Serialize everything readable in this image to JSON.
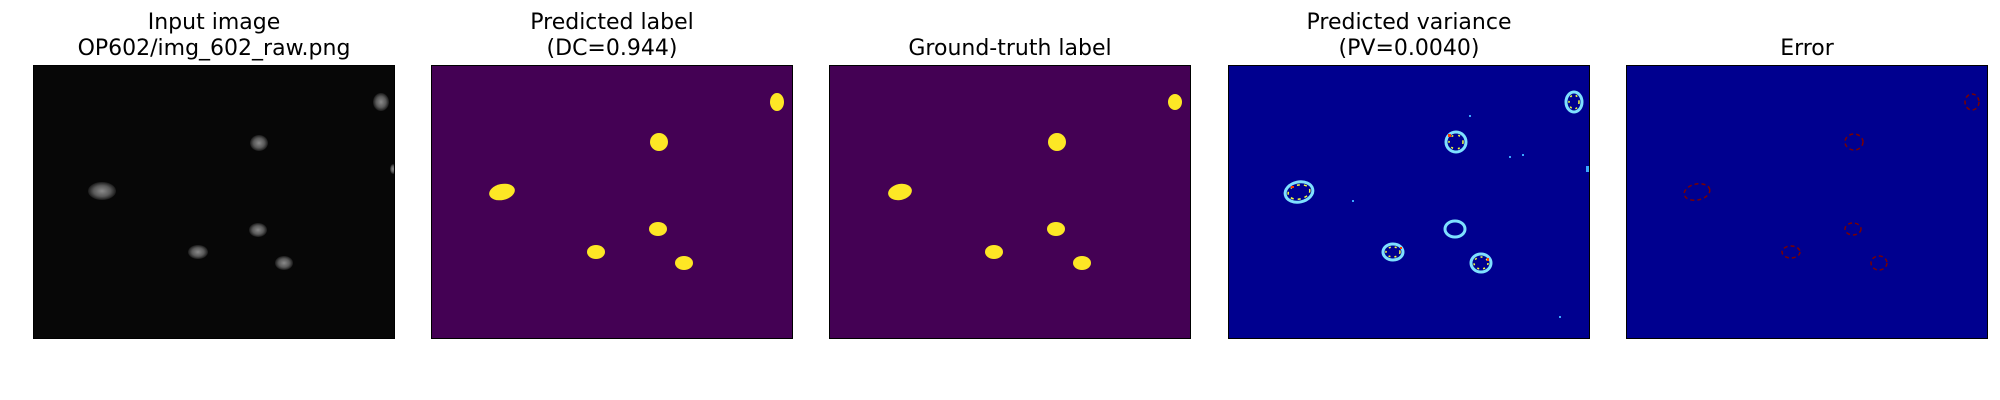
{
  "panels": [
    {
      "id": "input",
      "title_line1": "Input image",
      "title_line2": "OP602/img_602_raw.png"
    },
    {
      "id": "predicted-label",
      "title_line1": "Predicted label",
      "title_line2": "(DC=0.944)"
    },
    {
      "id": "ground-truth",
      "title": "Ground-truth label"
    },
    {
      "id": "predicted-variance",
      "title_line1": "Predicted variance",
      "title_line2": "(PV=0.0040)"
    },
    {
      "id": "error",
      "title": "Error"
    }
  ],
  "colors": {
    "input_bg": "#070707",
    "input_blob": "#6e6e6e",
    "label_bg": "#440154",
    "label_fg": "#fde725",
    "variance_bg": "#00008f",
    "variance_ring": "#7ee0ff",
    "variance_hot": "#ff3a00",
    "error_bg": "#00008f",
    "error_ring": "#7a0000"
  }
}
